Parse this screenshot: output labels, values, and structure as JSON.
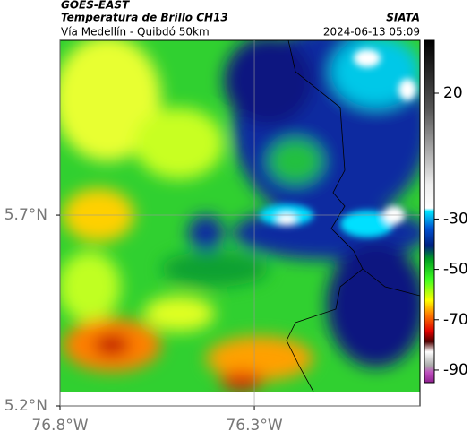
{
  "header": {
    "satellite": "GOES-EAST",
    "title": "Temperatura de Brillo CH13",
    "source": "SIATA",
    "subtitle": "Vía Medellín - Quibdó 50km",
    "datetime": "2024-06-13 05:09"
  },
  "map": {
    "xlim": [
      -76.8,
      -75.874
    ],
    "ylim": [
      5.2,
      6.158
    ],
    "xticks": [
      {
        "value": -76.8,
        "label": "76.8°W"
      },
      {
        "value": -76.3,
        "label": "76.3°W"
      }
    ],
    "yticks": [
      {
        "value": 5.7,
        "label": "5.7°N"
      },
      {
        "value": 5.2,
        "label": "5.2°N"
      }
    ],
    "grid": true
  },
  "colorbar": {
    "lim": [
      -95,
      41
    ],
    "ticks": [
      20,
      -30,
      -50,
      -70,
      -90
    ]
  }
}
